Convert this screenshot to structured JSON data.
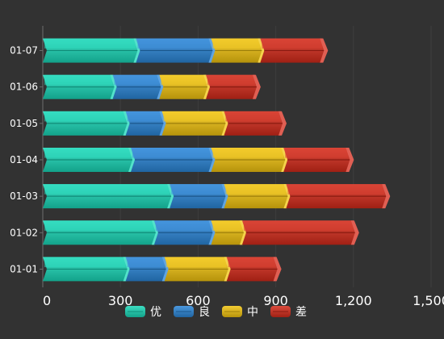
{
  "chart_data": {
    "type": "bar",
    "orientation": "horizontal",
    "stacked": true,
    "categories": [
      "01-01",
      "01-02",
      "01-03",
      "01-04",
      "01-05",
      "01-06",
      "01-07"
    ],
    "series": [
      {
        "name": "优",
        "color": "#19d8b8",
        "values": [
          320,
          430,
          490,
          340,
          320,
          270,
          360
        ]
      },
      {
        "name": "良",
        "color": "#2a86d8",
        "values": [
          150,
          220,
          210,
          310,
          140,
          180,
          290
        ]
      },
      {
        "name": "中",
        "color": "#f2c40f",
        "values": [
          240,
          120,
          240,
          280,
          240,
          180,
          190
        ]
      },
      {
        "name": "差",
        "color": "#d52a1a",
        "values": [
          190,
          430,
          380,
          250,
          220,
          190,
          240
        ]
      }
    ],
    "xlim": [
      0,
      1500
    ],
    "x_ticks": [
      "0",
      "300",
      "600",
      "900",
      "1,200",
      "1,500"
    ],
    "grid": true,
    "legend": "bottom-center"
  }
}
